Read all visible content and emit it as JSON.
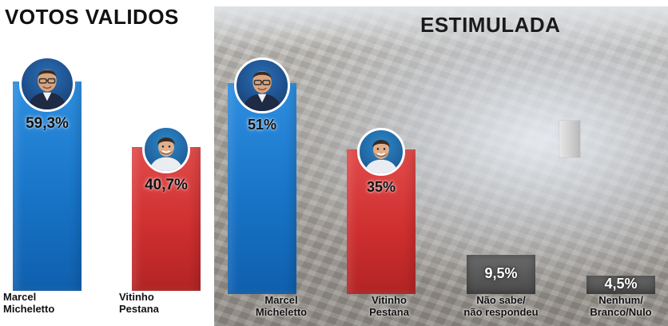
{
  "colors": {
    "blue": "#1976c9",
    "red": "#cf2f2f",
    "gray": "#4a4a4a",
    "title": "#111111"
  },
  "chart_data": [
    {
      "type": "bar",
      "title": "VOTOS VALIDOS",
      "categories": [
        "Marcel\nMicheletto",
        "Vitinho\nPestana"
      ],
      "values": [
        59.3,
        40.7
      ],
      "value_labels": [
        "59,3%",
        "40,7%"
      ],
      "ylim": [
        0,
        100
      ],
      "grid": false,
      "bar_colors": [
        "blue",
        "red"
      ],
      "avatars": [
        "man-with-glasses-avatar",
        "young-man-avatar"
      ]
    },
    {
      "type": "bar",
      "title": "ESTIMULADA",
      "categories": [
        "Marcel\nMicheletto",
        "Vitinho\nPestana",
        "Não sabe/\nnão respondeu",
        "Nenhum/\nBranco/Nulo"
      ],
      "values": [
        51,
        35,
        9.5,
        4.5
      ],
      "value_labels": [
        "51%",
        "35%",
        "9,5%",
        "4,5%"
      ],
      "ylim": [
        0,
        100
      ],
      "grid": false,
      "bar_colors": [
        "blue",
        "red",
        "gray",
        "gray"
      ],
      "avatars": [
        "man-with-glasses-avatar",
        "young-man-avatar",
        null,
        null
      ]
    }
  ]
}
